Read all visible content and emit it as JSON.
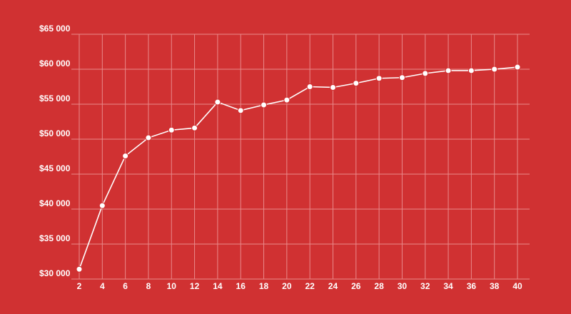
{
  "colors": {
    "background": "#D03132",
    "grid": "#E98A8B",
    "series": "#FFFFFF",
    "text": "#FFFFFF"
  },
  "chart_data": {
    "type": "line",
    "title": "",
    "xlabel": "",
    "ylabel": "",
    "grid": true,
    "legend": "none",
    "xlim": [
      2,
      40
    ],
    "ylim": [
      30000,
      65000
    ],
    "x_ticks": [
      "2",
      "4",
      "6",
      "8",
      "10",
      "12",
      "14",
      "16",
      "18",
      "20",
      "22",
      "24",
      "26",
      "28",
      "30",
      "32",
      "34",
      "36",
      "38",
      "40"
    ],
    "y_ticks": [
      "$30 000",
      "$35 000",
      "$40 000",
      "$45 000",
      "$50 000",
      "$55 000",
      "$60 000",
      "$65 000"
    ],
    "x_tick_values": [
      2,
      4,
      6,
      8,
      10,
      12,
      14,
      16,
      18,
      20,
      22,
      24,
      26,
      28,
      30,
      32,
      34,
      36,
      38,
      40
    ],
    "y_tick_values": [
      30000,
      35000,
      40000,
      45000,
      50000,
      55000,
      60000,
      65000
    ],
    "series": [
      {
        "x": [
          2,
          4,
          6,
          8,
          10,
          12,
          14,
          16,
          18,
          20,
          22,
          24,
          26,
          28,
          30,
          32,
          34,
          36,
          38,
          40
        ],
        "values": [
          31400,
          40500,
          47600,
          50200,
          51300,
          51600,
          55300,
          54100,
          54900,
          55600,
          57500,
          57400,
          58000,
          58700,
          58800,
          59400,
          59800,
          59800,
          60000,
          60300
        ]
      }
    ]
  }
}
